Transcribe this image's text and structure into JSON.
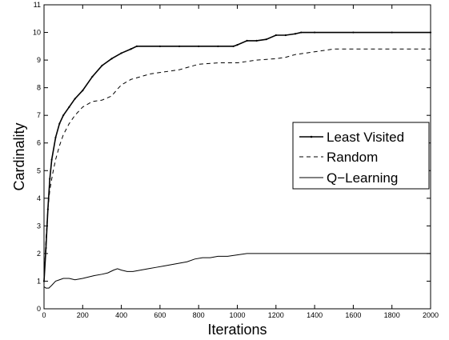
{
  "chart_data": {
    "type": "line",
    "title": "",
    "xlabel": "Iterations",
    "ylabel": "Cardinality",
    "xlim": [
      0,
      2000
    ],
    "ylim": [
      0,
      11
    ],
    "xticks": [
      0,
      200,
      400,
      600,
      800,
      1000,
      1200,
      1400,
      1600,
      1800,
      2000
    ],
    "yticks": [
      0,
      1,
      2,
      3,
      4,
      5,
      6,
      7,
      8,
      9,
      10,
      11
    ],
    "grid": false,
    "legend_position": "right",
    "series": [
      {
        "name": "Least Visited",
        "style": "solid-dotted",
        "color": "#000000",
        "points": [
          [
            0,
            1.0
          ],
          [
            10,
            2.2
          ],
          [
            20,
            3.6
          ],
          [
            30,
            4.7
          ],
          [
            40,
            5.4
          ],
          [
            60,
            6.2
          ],
          [
            80,
            6.7
          ],
          [
            100,
            7.0
          ],
          [
            130,
            7.3
          ],
          [
            160,
            7.6
          ],
          [
            200,
            7.9
          ],
          [
            250,
            8.4
          ],
          [
            300,
            8.8
          ],
          [
            350,
            9.05
          ],
          [
            400,
            9.25
          ],
          [
            450,
            9.4
          ],
          [
            480,
            9.5
          ],
          [
            600,
            9.5
          ],
          [
            700,
            9.5
          ],
          [
            800,
            9.5
          ],
          [
            900,
            9.5
          ],
          [
            980,
            9.5
          ],
          [
            1000,
            9.55
          ],
          [
            1050,
            9.7
          ],
          [
            1100,
            9.7
          ],
          [
            1150,
            9.75
          ],
          [
            1200,
            9.9
          ],
          [
            1250,
            9.9
          ],
          [
            1300,
            9.95
          ],
          [
            1330,
            10.0
          ],
          [
            1400,
            10.0
          ],
          [
            1600,
            10.0
          ],
          [
            1800,
            10.0
          ],
          [
            2000,
            10.0
          ]
        ]
      },
      {
        "name": "Random",
        "style": "dashed",
        "color": "#000000",
        "points": [
          [
            0,
            1.0
          ],
          [
            10,
            2.5
          ],
          [
            20,
            3.6
          ],
          [
            30,
            4.3
          ],
          [
            45,
            4.9
          ],
          [
            60,
            5.4
          ],
          [
            80,
            5.9
          ],
          [
            100,
            6.3
          ],
          [
            130,
            6.7
          ],
          [
            160,
            7.0
          ],
          [
            200,
            7.3
          ],
          [
            250,
            7.5
          ],
          [
            300,
            7.55
          ],
          [
            350,
            7.7
          ],
          [
            380,
            7.95
          ],
          [
            400,
            8.1
          ],
          [
            450,
            8.3
          ],
          [
            500,
            8.4
          ],
          [
            550,
            8.5
          ],
          [
            600,
            8.55
          ],
          [
            700,
            8.65
          ],
          [
            800,
            8.85
          ],
          [
            900,
            8.9
          ],
          [
            1000,
            8.9
          ],
          [
            1050,
            8.95
          ],
          [
            1100,
            9.0
          ],
          [
            1200,
            9.05
          ],
          [
            1250,
            9.1
          ],
          [
            1300,
            9.2
          ],
          [
            1400,
            9.3
          ],
          [
            1450,
            9.35
          ],
          [
            1500,
            9.4
          ],
          [
            1600,
            9.4
          ],
          [
            1800,
            9.4
          ],
          [
            2000,
            9.4
          ]
        ]
      },
      {
        "name": "Q−Learning",
        "style": "solid",
        "color": "#000000",
        "points": [
          [
            0,
            0.8
          ],
          [
            10,
            0.75
          ],
          [
            25,
            0.75
          ],
          [
            40,
            0.85
          ],
          [
            60,
            1.0
          ],
          [
            80,
            1.05
          ],
          [
            100,
            1.1
          ],
          [
            130,
            1.1
          ],
          [
            160,
            1.05
          ],
          [
            200,
            1.1
          ],
          [
            230,
            1.15
          ],
          [
            260,
            1.2
          ],
          [
            300,
            1.25
          ],
          [
            330,
            1.3
          ],
          [
            360,
            1.4
          ],
          [
            380,
            1.45
          ],
          [
            400,
            1.4
          ],
          [
            430,
            1.35
          ],
          [
            460,
            1.35
          ],
          [
            500,
            1.4
          ],
          [
            540,
            1.45
          ],
          [
            580,
            1.5
          ],
          [
            620,
            1.55
          ],
          [
            660,
            1.6
          ],
          [
            700,
            1.65
          ],
          [
            740,
            1.7
          ],
          [
            780,
            1.8
          ],
          [
            820,
            1.85
          ],
          [
            860,
            1.85
          ],
          [
            900,
            1.9
          ],
          [
            950,
            1.9
          ],
          [
            1000,
            1.95
          ],
          [
            1050,
            2.0
          ],
          [
            1100,
            2.0
          ],
          [
            1200,
            2.0
          ],
          [
            1300,
            2.0
          ],
          [
            1400,
            2.0
          ],
          [
            1600,
            2.0
          ],
          [
            1800,
            2.0
          ],
          [
            2000,
            2.0
          ]
        ]
      }
    ]
  }
}
